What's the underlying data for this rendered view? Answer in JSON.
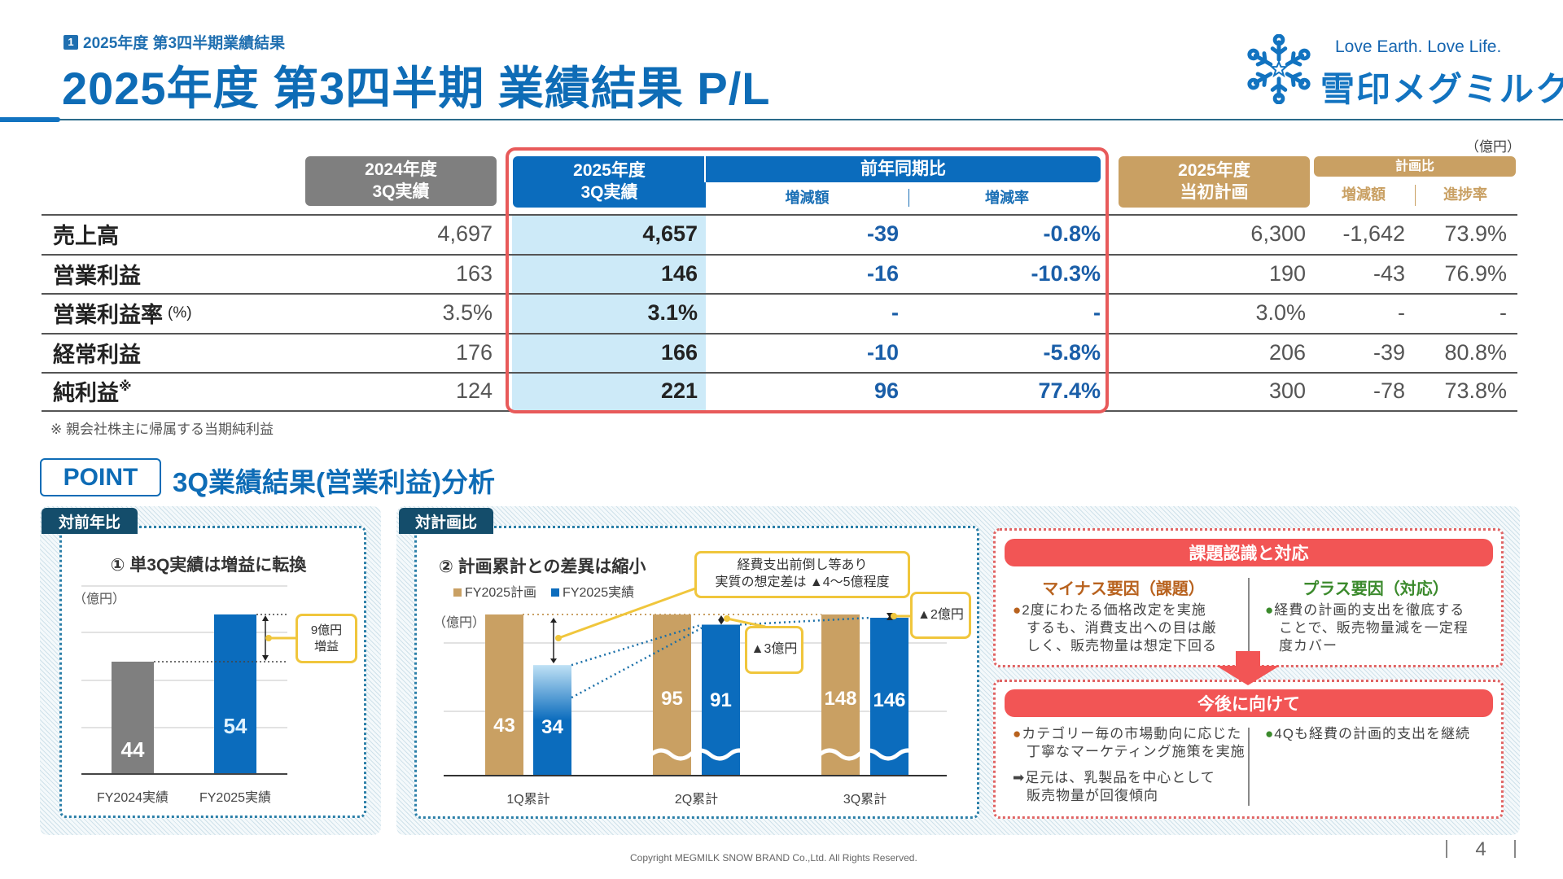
{
  "header": {
    "section_number": "1",
    "section_label": "2025年度 第3四半期業績結果",
    "title": "2025年度 第3四半期 業績結果 P/L"
  },
  "logo": {
    "tagline": "Love Earth. Love Life.",
    "brand": "雪印メグミルク"
  },
  "table": {
    "unit": "（億円）",
    "col_fy2024": [
      "2024年度",
      "3Q実績"
    ],
    "col_fy2025": [
      "2025年度",
      "3Q実績"
    ],
    "yoy_group": "前年同期比",
    "yoy_diff": "増減額",
    "yoy_rate": "増減率",
    "col_plan": [
      "2025年度",
      "当初計画"
    ],
    "plan_group": "計画比",
    "plan_diff": "増減額",
    "plan_progress": "進捗率",
    "rows": [
      {
        "label": "売上高",
        "suffix": "",
        "fy2024": "4,697",
        "fy2025": "4,657",
        "yoy_diff": "-39",
        "yoy_rate": "-0.8%",
        "plan": "6,300",
        "plan_diff": "-1,642",
        "progress": "73.9%"
      },
      {
        "label": "営業利益",
        "suffix": "",
        "fy2024": "163",
        "fy2025": "146",
        "yoy_diff": "-16",
        "yoy_rate": "-10.3%",
        "plan": "190",
        "plan_diff": "-43",
        "progress": "76.9%"
      },
      {
        "label": "営業利益率",
        "suffix": "(%)",
        "fy2024": "3.5%",
        "fy2025": "3.1%",
        "yoy_diff": "-",
        "yoy_rate": "-",
        "plan": "3.0%",
        "plan_diff": "-",
        "progress": "-"
      },
      {
        "label": "経常利益",
        "suffix": "",
        "fy2024": "176",
        "fy2025": "166",
        "yoy_diff": "-10",
        "yoy_rate": "-5.8%",
        "plan": "206",
        "plan_diff": "-39",
        "progress": "80.8%"
      },
      {
        "label": "純利益",
        "suffix": "※",
        "fy2024": "124",
        "fy2025": "221",
        "yoy_diff": "96",
        "yoy_rate": "77.4%",
        "plan": "300",
        "plan_diff": "-78",
        "progress": "73.8%"
      }
    ],
    "footnote": "※ 親会社株主に帰属する当期純利益"
  },
  "point": {
    "badge": "POINT",
    "title": "3Q業績結果(営業利益)分析"
  },
  "panel_yoy": {
    "tab": "対前年比",
    "heading": "① 単3Q実績は増益に転換",
    "unit": "（億円）",
    "callout": [
      "9億円",
      "増益"
    ]
  },
  "panel_plan": {
    "tab": "対計画比",
    "heading": "② 計画累計との差異は縮小",
    "unit": "（億円）",
    "callout_main": [
      "経費支出前倒し等あり",
      "実質の想定差は ▲4～5億程度"
    ],
    "callout_2q": "▲3億円",
    "callout_3q": "▲2億円"
  },
  "panel_issues": {
    "header": "課題認識と対応",
    "minus_title": "マイナス要因（課題）",
    "plus_title": "プラス要因（対応）",
    "minus_lines": [
      "2度にわたる価格改定を実施",
      "するも、消費支出への目は厳",
      "しく、販売物量は想定下回る"
    ],
    "plus_lines": [
      "経費の計画的支出を徹底する",
      "ことで、販売物量減を一定程",
      "度カバー"
    ],
    "future_header": "今後に向けて",
    "future_left_lines": [
      "カテゴリー毎の市場動向に応じた",
      "丁寧なマーケティング施策を実施"
    ],
    "future_left_arrow_lines": [
      "➡足元は、乳製品を中心として",
      "販売物量が回復傾向"
    ],
    "future_right_lines": [
      "4Qも経費の計画的支出を継続"
    ]
  },
  "footer": {
    "copyright": "Copyright MEGMILK SNOW BRAND Co.,Ltd. All Rights Reserved.",
    "page": "4"
  },
  "colors": {
    "brand_blue": "#0e6cb6",
    "gray": "#7f7f7f",
    "gold": "#c9a063",
    "highlight": "#cdeaf8",
    "red": "#f25555"
  },
  "chart_data": [
    {
      "type": "bar",
      "title": "① 単3Q実績は増益に転換",
      "ylabel": "（億円）",
      "categories": [
        "FY2024実績",
        "FY2025実績"
      ],
      "values": [
        44,
        54
      ],
      "colors": [
        "#7f7f7f",
        "#0b6cbd"
      ],
      "grid": true
    },
    {
      "type": "bar",
      "title": "② 計画累計との差異は縮小",
      "ylabel": "（億円）",
      "categories": [
        "1Q累計",
        "2Q累計",
        "3Q累計"
      ],
      "series": [
        {
          "name": "FY2025計画",
          "values": [
            43,
            95,
            148
          ],
          "color": "#c9a063"
        },
        {
          "name": "FY2025実績",
          "values": [
            34,
            91,
            146
          ],
          "color": "#0b6cbd"
        }
      ],
      "legend": "top-left",
      "axis_break": true,
      "grid": true
    }
  ]
}
